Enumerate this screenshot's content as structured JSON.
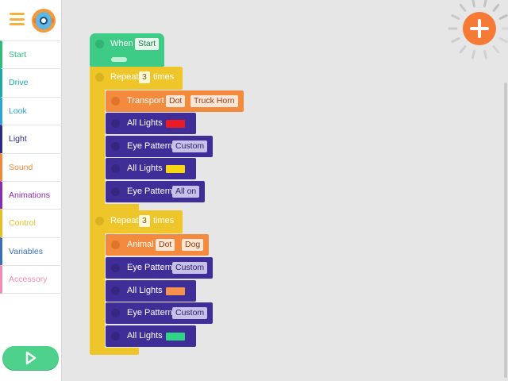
{
  "sidebar": {
    "categories": [
      {
        "label": "Start",
        "color": "#2fbd7a"
      },
      {
        "label": "Drive",
        "color": "#1ea9a6"
      },
      {
        "label": "Look",
        "color": "#2ba5d6"
      },
      {
        "label": "Light",
        "color": "#2c2a8c"
      },
      {
        "label": "Sound",
        "color": "#f08a3a"
      },
      {
        "label": "Animations",
        "color": "#8a2bb5"
      },
      {
        "label": "Control",
        "color": "#e7bf20"
      },
      {
        "label": "Variables",
        "color": "#3a6fb7"
      },
      {
        "label": "Accessory",
        "color": "#f28bb4"
      }
    ],
    "icons": {
      "menu": "hamburger-menu-icon",
      "avatar": "dash-robot-avatar-icon",
      "play": "play-icon"
    }
  },
  "canvas": {
    "add_icon": "plus-icon",
    "start_block": {
      "label": "When",
      "value": "Start"
    },
    "repeat_1": {
      "label": "Repeat",
      "count": "3",
      "suffix": "times"
    },
    "repeat_1_body": [
      {
        "type": "sound",
        "label": "Transport",
        "chip1": "Dot",
        "chip2": "Truck Horn"
      },
      {
        "type": "light",
        "label": "All Lights",
        "color": "#ea1c23"
      },
      {
        "type": "eye",
        "label": "Eye Pattern",
        "value": "Custom"
      },
      {
        "type": "light",
        "label": "All Lights",
        "color": "#f6d712"
      },
      {
        "type": "eye",
        "label": "Eye Pattern",
        "value": "All on"
      }
    ],
    "repeat_2": {
      "label": "Repeat",
      "count": "3",
      "suffix": "times"
    },
    "repeat_2_body": [
      {
        "type": "sound",
        "label": "Animal",
        "chip1": "Dot",
        "chip2": "Dog"
      },
      {
        "type": "eye",
        "label": "Eye Pattern",
        "value": "Custom"
      },
      {
        "type": "light",
        "label": "All Lights",
        "color": "#f5924e"
      },
      {
        "type": "eye",
        "label": "Eye Pattern",
        "value": "Custom"
      },
      {
        "type": "light",
        "label": "All Lights",
        "color": "#2ed487"
      }
    ]
  }
}
